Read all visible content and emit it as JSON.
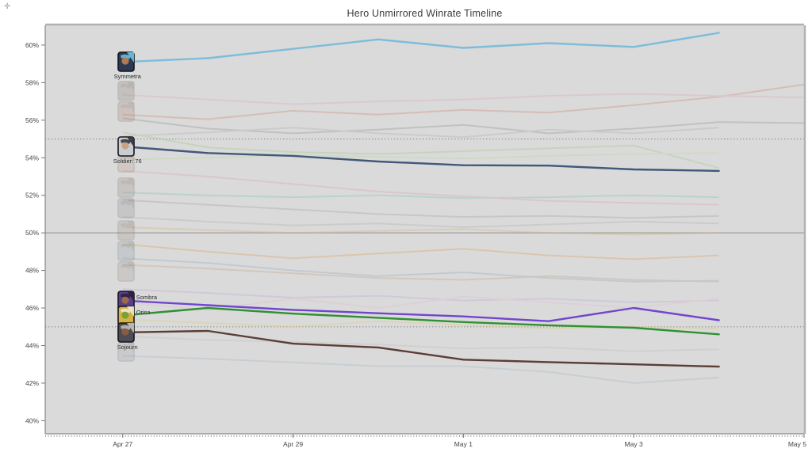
{
  "page": {
    "title": "Hero Unmirrored Winrate Timeline",
    "move_glyph": "✛"
  },
  "chart_data": {
    "type": "line",
    "title": "Hero Unmirrored Winrate Timeline",
    "xlabel": "",
    "ylabel": "",
    "x_ticks": [
      {
        "label": "Apr 27",
        "day": 0
      },
      {
        "label": "Apr 29",
        "day": 2
      },
      {
        "label": "May 1",
        "day": 4
      },
      {
        "label": "May 3",
        "day": 6
      },
      {
        "label": "May 5",
        "day": 8
      }
    ],
    "y_ticks": [
      {
        "label": "40%",
        "value": 40
      },
      {
        "label": "42%",
        "value": 42
      },
      {
        "label": "44%",
        "value": 44
      },
      {
        "label": "46%",
        "value": 46
      },
      {
        "label": "48%",
        "value": 48
      },
      {
        "label": "50%",
        "value": 50
      },
      {
        "label": "52%",
        "value": 52
      },
      {
        "label": "54%",
        "value": 54
      },
      {
        "label": "56%",
        "value": 56
      },
      {
        "label": "58%",
        "value": 58
      },
      {
        "label": "60%",
        "value": 60
      }
    ],
    "xlim_days": [
      -0.91,
      8.0
    ],
    "ylim": [
      39.3,
      61.05
    ],
    "reference_lines": {
      "solid": [
        50
      ],
      "dotted": [
        45,
        55
      ]
    },
    "days": [
      0,
      1,
      2,
      3,
      4,
      5,
      6,
      7
    ],
    "series": [
      {
        "name": "Symmetra",
        "color": "#7ebcda",
        "label_side": "below",
        "values": [
          59.1,
          59.3,
          59.8,
          60.3,
          59.85,
          60.1,
          59.9,
          60.65
        ],
        "icon": {
          "base": "#2b3a52",
          "accent": "#6fc4e4",
          "face": "#b07a55"
        }
      },
      {
        "name": "Soldier: 76",
        "color": "#41587a",
        "label_side": "below",
        "values": [
          54.6,
          54.25,
          54.1,
          53.8,
          53.6,
          53.58,
          53.38,
          53.3
        ],
        "icon": {
          "base": "#c9ccd2",
          "accent": "#2e3238",
          "face": "#caa183"
        }
      },
      {
        "name": "Sombra",
        "color": "#7146cd",
        "label_side": "right",
        "values": [
          46.4,
          46.15,
          45.9,
          45.72,
          45.55,
          45.3,
          46.0,
          45.35
        ],
        "icon": {
          "base": "#5a3f8e",
          "accent": "#2a1f3d",
          "face": "#9c6a4a"
        }
      },
      {
        "name": "Orisa",
        "color": "#2f9134",
        "label_side": "right",
        "values": [
          45.6,
          46.0,
          45.7,
          45.48,
          45.25,
          45.08,
          44.95,
          44.6
        ],
        "icon": {
          "base": "#d7b23e",
          "accent": "#eee8da",
          "face": "#7aa03c"
        }
      },
      {
        "name": "Sojourn",
        "color": "#5b3e35",
        "label_side": "below",
        "values": [
          44.7,
          44.78,
          44.1,
          43.9,
          43.25,
          43.12,
          43.0,
          42.88
        ],
        "icon": {
          "base": "#4c4c55",
          "accent": "#c9c2b8",
          "face": "#8a5c48"
        }
      }
    ],
    "background_series": [
      {
        "color": "#cf8f7d",
        "values": [
          56.3,
          56.05,
          56.5,
          56.3,
          56.55,
          56.4,
          56.8,
          57.25,
          57.9
        ]
      },
      {
        "color": "#ddadc2",
        "values": [
          57.35,
          57.1,
          56.85,
          57.0,
          57.1,
          57.3,
          57.4,
          57.3,
          57.2
        ]
      },
      {
        "color": "#9a9a9a",
        "values": [
          56.1,
          55.55,
          55.3,
          55.5,
          55.75,
          55.3,
          55.55,
          55.9,
          55.85
        ]
      },
      {
        "color": "#b5b5b5",
        "values": [
          55.15,
          55.35,
          55.6,
          55.3,
          55.1,
          55.5,
          55.3,
          55.6
        ]
      },
      {
        "color": "#a5cc8e",
        "values": [
          55.35,
          54.55,
          54.3,
          54.2,
          54.35,
          54.5,
          54.65,
          53.45
        ]
      },
      {
        "color": "#bcd9a8",
        "values": [
          53.9,
          54.0,
          54.15,
          54.05,
          53.95,
          54.1,
          54.2,
          54.25
        ]
      },
      {
        "color": "#86c7bb",
        "values": [
          52.15,
          52.0,
          51.9,
          52.0,
          51.85,
          51.9,
          52.0,
          51.9
        ]
      },
      {
        "color": "#dba6b4",
        "values": [
          53.3,
          53.0,
          52.6,
          52.2,
          51.95,
          51.7,
          51.6,
          51.5
        ]
      },
      {
        "color": "#a9a9a9",
        "values": [
          51.75,
          51.5,
          51.25,
          51.0,
          50.85,
          50.9,
          50.8,
          50.9
        ]
      },
      {
        "color": "#d3b87e",
        "values": [
          50.3,
          50.15,
          50.0,
          50.1,
          50.2,
          50.0,
          49.9,
          50.0
        ]
      },
      {
        "color": "#b3b3b3",
        "values": [
          50.85,
          50.6,
          50.4,
          50.5,
          50.3,
          50.45,
          50.6,
          50.5
        ]
      },
      {
        "color": "#dca468",
        "values": [
          49.4,
          49.0,
          48.65,
          48.9,
          49.15,
          48.8,
          48.6,
          48.8
        ]
      },
      {
        "color": "#c6a98c",
        "values": [
          48.3,
          48.1,
          47.85,
          47.6,
          47.5,
          47.7,
          47.5,
          47.4
        ]
      },
      {
        "color": "#9fb0c0",
        "values": [
          48.65,
          48.4,
          48.0,
          47.7,
          47.9,
          47.6,
          47.4,
          47.45
        ]
      },
      {
        "color": "#bfb0d6",
        "values": [
          47.0,
          46.8,
          46.55,
          46.65,
          46.4,
          46.5,
          46.3,
          46.4
        ]
      },
      {
        "color": "#e3bed3",
        "values": [
          46.3,
          45.9,
          46.5,
          46.0,
          46.6,
          46.3,
          46.0,
          46.5
        ]
      },
      {
        "color": "#dccf83",
        "values": [
          45.4,
          45.2,
          45.0,
          45.3,
          45.1,
          44.9,
          45.0,
          44.9
        ]
      },
      {
        "color": "#a9bbc9",
        "values": [
          43.45,
          43.3,
          43.1,
          42.9,
          42.9,
          42.6,
          42.0,
          42.3
        ]
      },
      {
        "color": "#c2c2c2",
        "values": [
          44.5,
          44.3,
          44.2,
          44.05,
          43.85,
          43.9,
          43.7,
          43.8
        ]
      }
    ],
    "faded_icon_rows": [
      {
        "value": 57.55,
        "base": "#8a7f78",
        "accent": "#5f5650"
      },
      {
        "value": 56.45,
        "base": "#b08878",
        "accent": "#7d5a4e"
      },
      {
        "value": 53.75,
        "base": "#c09a8a",
        "accent": "#8a6a5c"
      },
      {
        "value": 52.4,
        "base": "#9a8f85",
        "accent": "#6e6258"
      },
      {
        "value": 51.3,
        "base": "#8f949c",
        "accent": "#5c6068"
      },
      {
        "value": 50.15,
        "base": "#a09488",
        "accent": "#70635a"
      },
      {
        "value": 49.05,
        "base": "#95a0a8",
        "accent": "#606a72"
      },
      {
        "value": 47.95,
        "base": "#a89a90",
        "accent": "#756a60"
      },
      {
        "value": 43.7,
        "base": "#9aa2aa",
        "accent": "#646c74"
      }
    ],
    "colors": {
      "plot_bg": "#dadada",
      "axis": "#777777",
      "ref_solid": "#9e9e9e",
      "ref_dotted": "#8f8f8f",
      "tick_text": "#444444",
      "border_light": "#b2b2b2"
    }
  }
}
